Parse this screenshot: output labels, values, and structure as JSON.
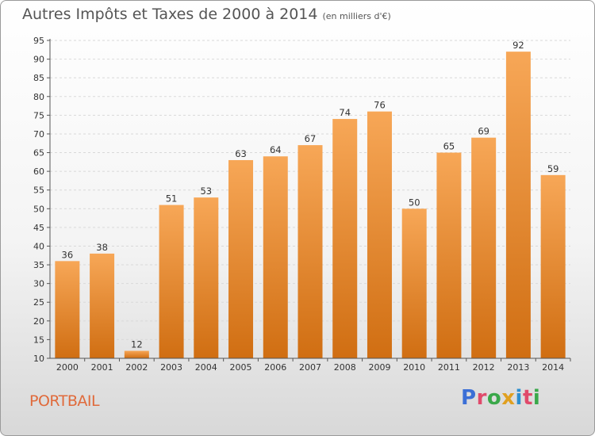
{
  "title": {
    "text": "Autres Impôts et Taxes de 2000 à 2014",
    "unit": "(en milliers d'€)"
  },
  "place_name": "PORTBAIL",
  "brand": {
    "text": "Proxiti",
    "letter_colors": [
      "#3b6fd6",
      "#e04a6b",
      "#3aa84a",
      "#e0a020",
      "#2d8fd0",
      "#e04a6b",
      "#3aa84a"
    ]
  },
  "colors": {
    "bar_top": "#f7a757",
    "bar_bottom": "#d06e12",
    "grid": "#d9d9d9",
    "axis": "#555555"
  },
  "chart_data": {
    "type": "bar",
    "categories": [
      "2000",
      "2001",
      "2002",
      "2003",
      "2004",
      "2005",
      "2006",
      "2007",
      "2008",
      "2009",
      "2010",
      "2011",
      "2012",
      "2013",
      "2014"
    ],
    "values": [
      36,
      38,
      12,
      51,
      53,
      63,
      64,
      67,
      74,
      76,
      50,
      65,
      69,
      92,
      59
    ],
    "ylim": [
      10,
      95
    ],
    "yticks": [
      10,
      15,
      20,
      25,
      30,
      35,
      40,
      45,
      50,
      55,
      60,
      65,
      70,
      75,
      80,
      85,
      90,
      95
    ],
    "grid": "horizontal dashed",
    "legend": "none",
    "data_labels": true
  }
}
